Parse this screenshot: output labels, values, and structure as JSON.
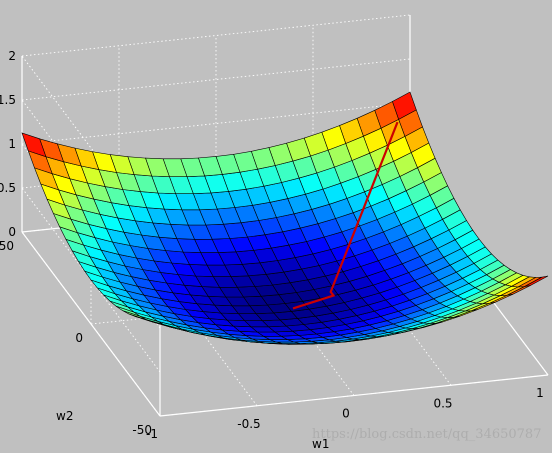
{
  "chart_data": {
    "type": "surface",
    "xlabel": "w1",
    "ylabel": "w2",
    "zlabel": "",
    "xlim": [
      -1,
      1
    ],
    "ylim": [
      -50,
      50
    ],
    "zlim": [
      0,
      2
    ],
    "grid": true,
    "colormap": "jet",
    "x_ticks": [
      {
        "value": -1,
        "label": "-1"
      },
      {
        "value": -0.5,
        "label": "-0.5"
      },
      {
        "value": 0,
        "label": "0"
      },
      {
        "value": 0.5,
        "label": "0.5"
      },
      {
        "value": 1,
        "label": "1"
      }
    ],
    "y_ticks": [
      {
        "value": -50,
        "label": "-50"
      },
      {
        "value": 0,
        "label": "0"
      },
      {
        "value": 50,
        "label": "50"
      }
    ],
    "z_ticks": [
      {
        "value": 0,
        "label": "0"
      },
      {
        "value": 0.5,
        "label": "0.5"
      },
      {
        "value": 1,
        "label": "1"
      },
      {
        "value": 1.5,
        "label": "1.5"
      },
      {
        "value": 2,
        "label": "2"
      }
    ],
    "surface": {
      "function": "0.5*w1^2 + 0.00025*w2^2 (approx. quadratic bowl)",
      "w1_range": [
        -1,
        1
      ],
      "w2_range": [
        -50,
        50
      ],
      "z_min": 0,
      "z_max": 1.2
    },
    "path": {
      "color": "#cc0000",
      "points": [
        {
          "x": 0.9,
          "y": 45
        },
        {
          "x": 0.25,
          "y": 2
        },
        {
          "x": 0.25,
          "y": 0
        },
        {
          "x": 0.02,
          "y": -3
        }
      ]
    }
  },
  "watermark": "https://blog.csdn.net/qq_34650787"
}
